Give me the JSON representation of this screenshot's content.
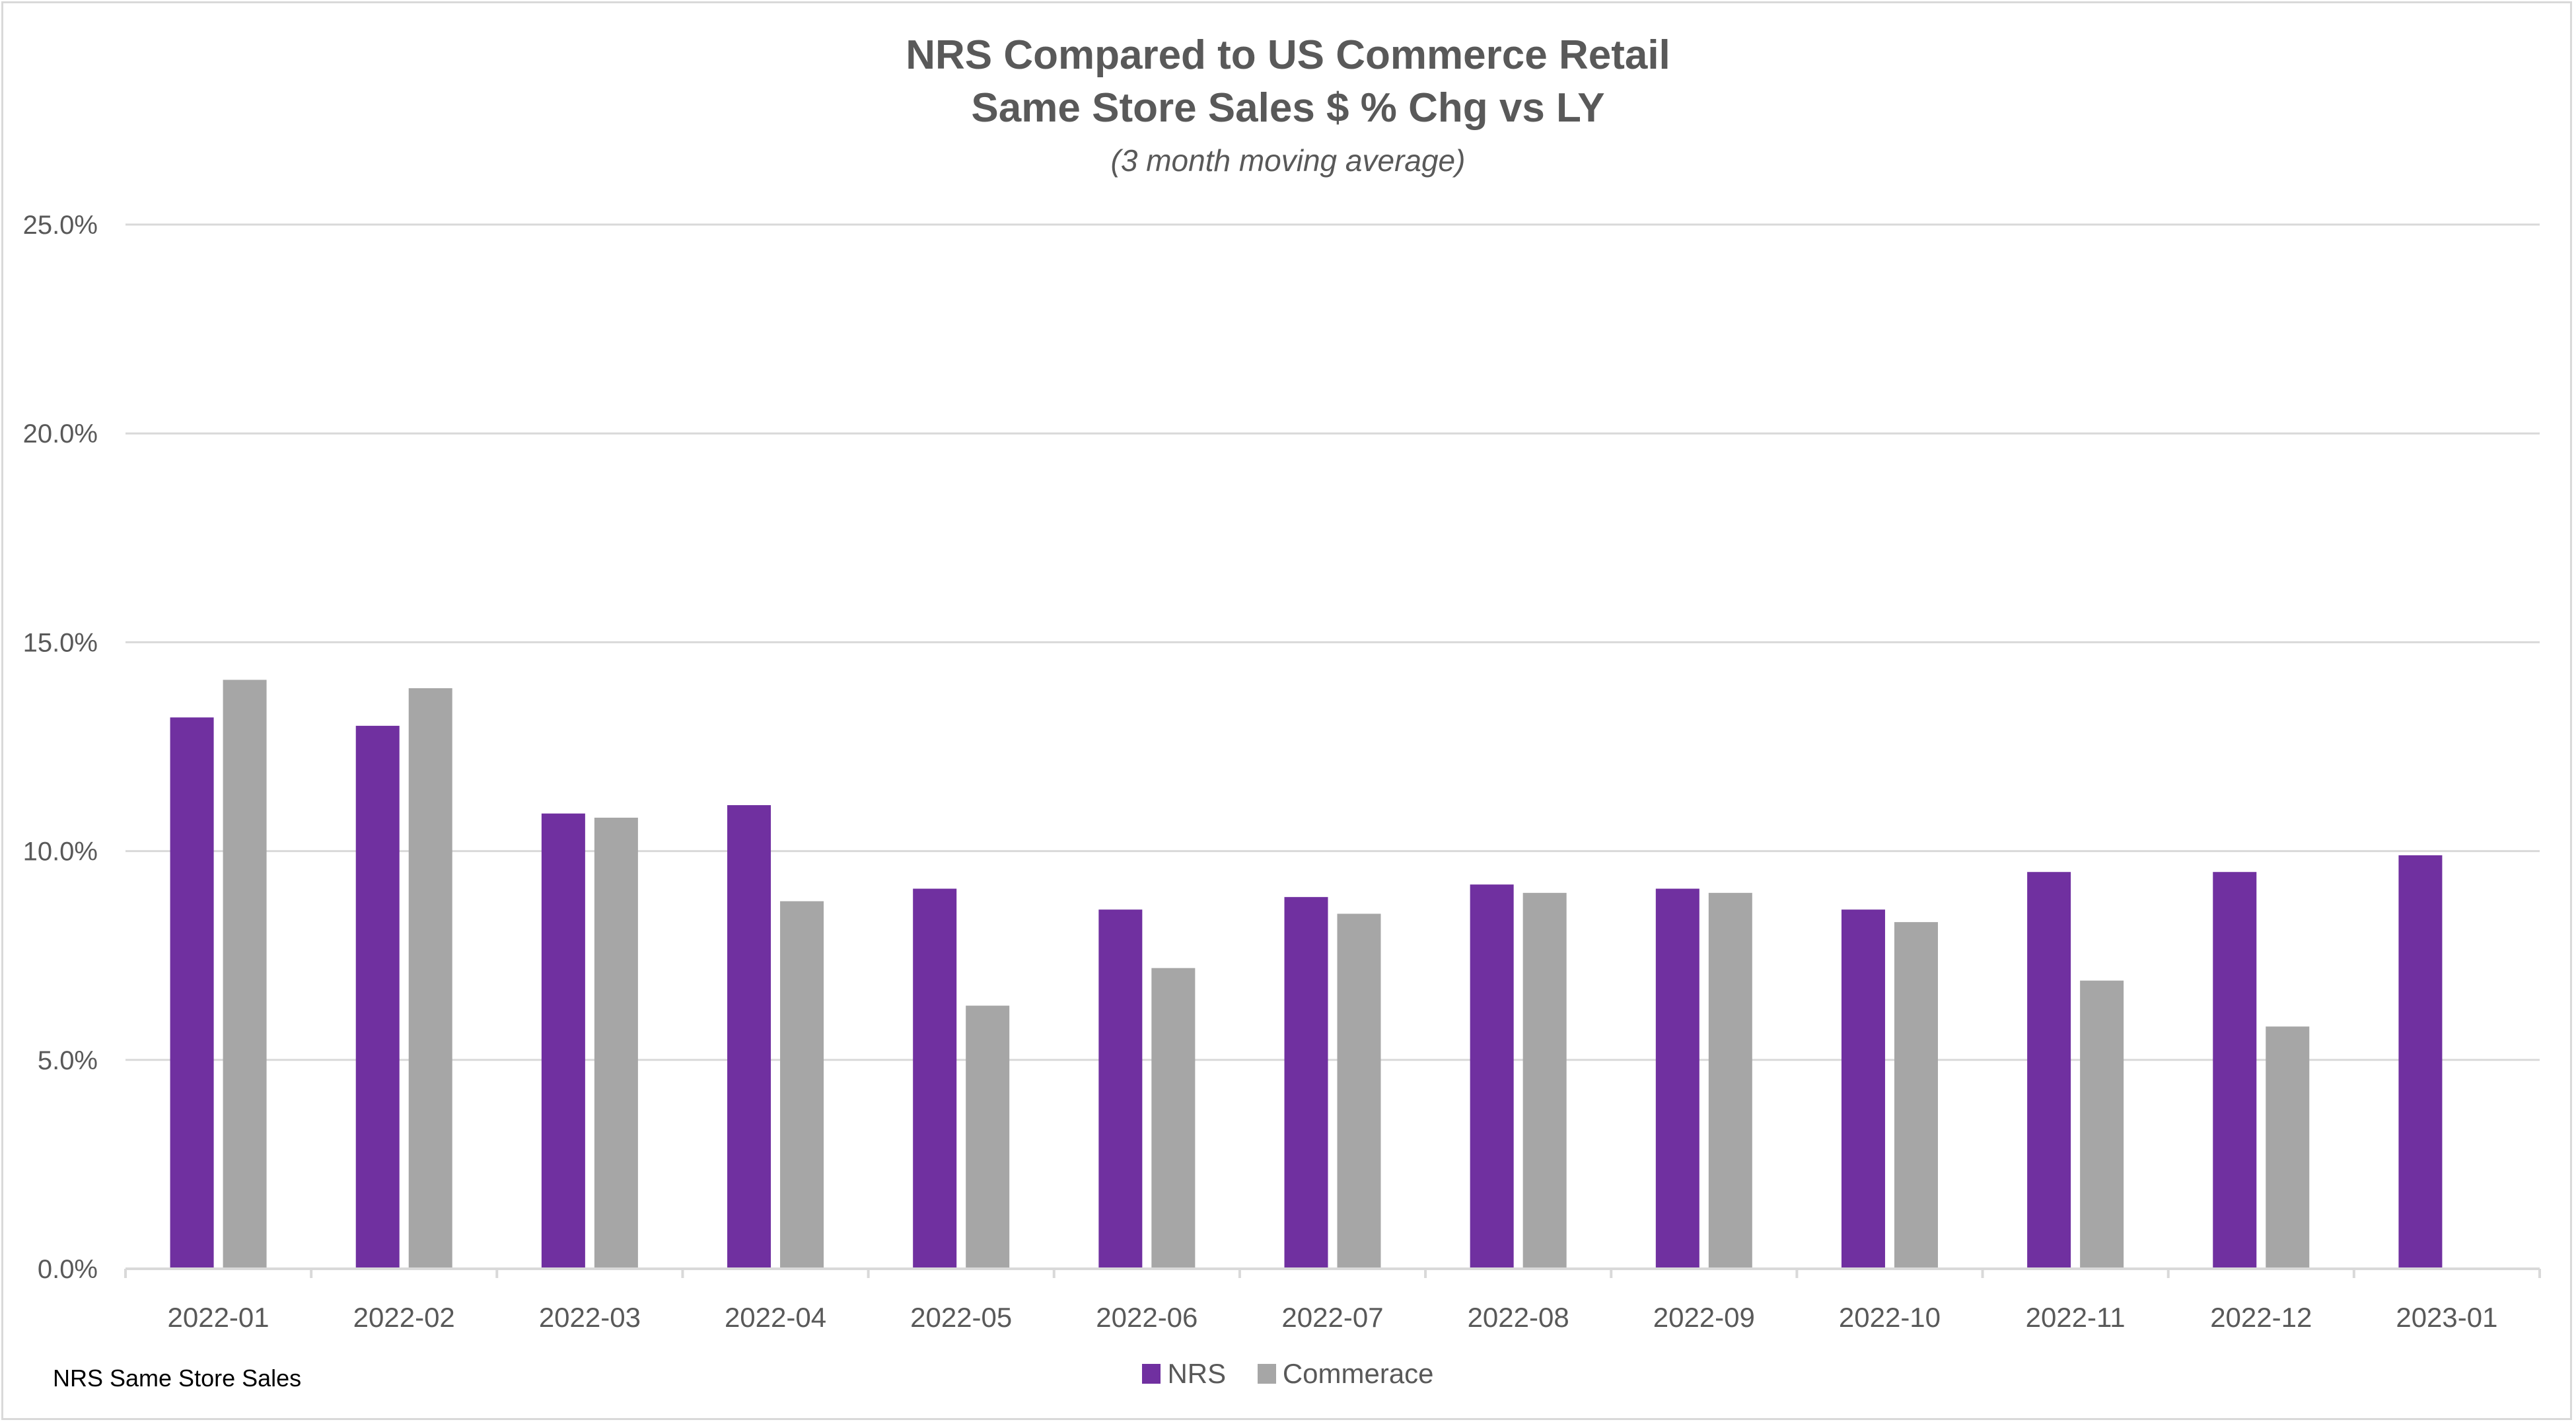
{
  "chart_data": {
    "type": "bar",
    "title": "NRS Compared to US Commerce Retail",
    "title_line2": "Same Store Sales $ % Chg vs LY",
    "subtitle": "(3 month moving average)",
    "xlabel": "",
    "ylabel": "",
    "ylim": [
      0,
      25
    ],
    "yticks": [
      0,
      5,
      10,
      15,
      20,
      25
    ],
    "ytick_labels": [
      "0.0%",
      "5.0%",
      "10.0%",
      "15.0%",
      "20.0%",
      "25.0%"
    ],
    "grid": true,
    "legend_position": "bottom",
    "categories": [
      "2022-01",
      "2022-02",
      "2022-03",
      "2022-04",
      "2022-05",
      "2022-06",
      "2022-07",
      "2022-08",
      "2022-09",
      "2022-10",
      "2022-11",
      "2022-12",
      "2023-01"
    ],
    "series": [
      {
        "name": "NRS",
        "color": "#7030A0",
        "values": [
          13.2,
          13.0,
          10.9,
          11.1,
          9.1,
          8.6,
          8.9,
          9.2,
          9.1,
          8.6,
          9.5,
          9.5,
          9.9
        ]
      },
      {
        "name": "Commerace",
        "color": "#A6A6A6",
        "values": [
          14.1,
          13.9,
          10.8,
          8.8,
          6.3,
          7.2,
          8.5,
          9.0,
          9.0,
          8.3,
          6.9,
          5.8,
          null
        ]
      }
    ]
  },
  "footnote": "NRS Same Store Sales",
  "colors": {
    "nrs": "#7030A0",
    "commerace": "#A6A6A6",
    "grid": "#d9d9d9",
    "text": "#595959"
  }
}
